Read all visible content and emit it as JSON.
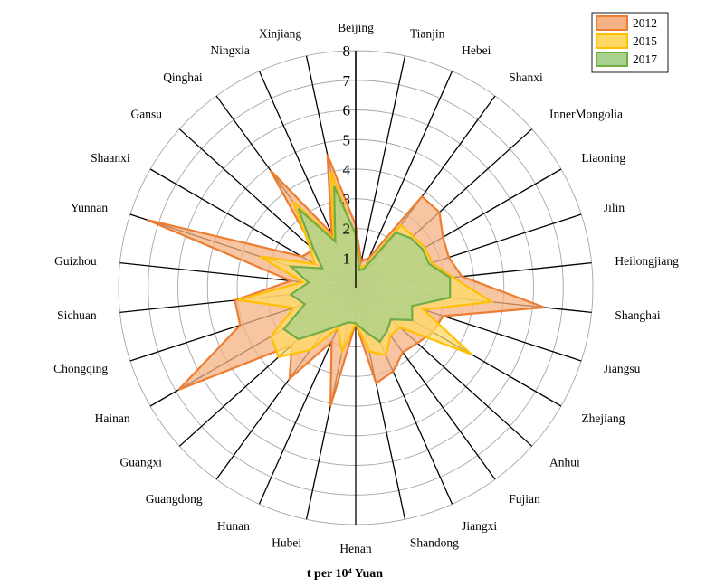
{
  "chart_data": {
    "type": "radar",
    "unit": "t per 10⁴ Yuan",
    "rlim": [
      0,
      8
    ],
    "ticks": [
      "1",
      "2",
      "3",
      "4",
      "5",
      "6",
      "7",
      "8"
    ],
    "categories": [
      "Beijing",
      "Tianjin",
      "Hebei",
      "Shanxi",
      "InnerMongolia",
      "Liaoning",
      "Jilin",
      "Heilongjiang",
      "Shanghai",
      "Jiangsu",
      "Zhejiang",
      "Anhui",
      "Fujian",
      "Jiangxi",
      "Shandong",
      "Henan",
      "Hubei",
      "Hunan",
      "Guangdong",
      "Guangxi",
      "Hainan",
      "Chongqing",
      "Sichuan",
      "Guizhou",
      "Yunnan",
      "Shaanxi",
      "Gansu",
      "Qinghai",
      "Ningxia",
      "Xinjiang"
    ],
    "series": [
      {
        "name": "2012",
        "color": "#f4b183",
        "stroke": "#ed7d31",
        "values": [
          2.1,
          0.9,
          1.1,
          3.8,
          3.8,
          3.4,
          3.3,
          3.6,
          6.4,
          3.1,
          3.0,
          2.8,
          2.7,
          3.1,
          3.3,
          1.2,
          4.1,
          2.0,
          3.8,
          2.9,
          6.9,
          4.1,
          4.1,
          2.2,
          7.4,
          2.1,
          1.9,
          4.9,
          2.0,
          4.6
        ]
      },
      {
        "name": "2015",
        "color": "#ffd966",
        "stroke": "#ffc000",
        "values": [
          1.7,
          0.7,
          0.8,
          2.6,
          2.6,
          2.7,
          2.7,
          3.3,
          4.6,
          2.4,
          4.5,
          2.0,
          2.0,
          2.5,
          2.2,
          1.2,
          2.2,
          1.5,
          2.6,
          3.5,
          3.3,
          2.2,
          4.0,
          1.8,
          3.4,
          1.6,
          2.1,
          3.6,
          1.8,
          4.0
        ]
      },
      {
        "name": "2017",
        "color": "#a9d18e",
        "stroke": "#70ad47",
        "values": [
          1.8,
          0.6,
          0.7,
          2.3,
          2.5,
          2.6,
          2.6,
          3.2,
          3.2,
          2.0,
          2.2,
          1.6,
          1.8,
          2.0,
          1.5,
          1.2,
          1.2,
          1.4,
          1.8,
          2.6,
          2.8,
          1.8,
          2.2,
          1.6,
          2.3,
          1.3,
          1.9,
          3.3,
          1.7,
          3.5
        ]
      }
    ],
    "legend": [
      "2012",
      "2015",
      "2017"
    ],
    "legend_position": "top-right",
    "grid": true
  }
}
